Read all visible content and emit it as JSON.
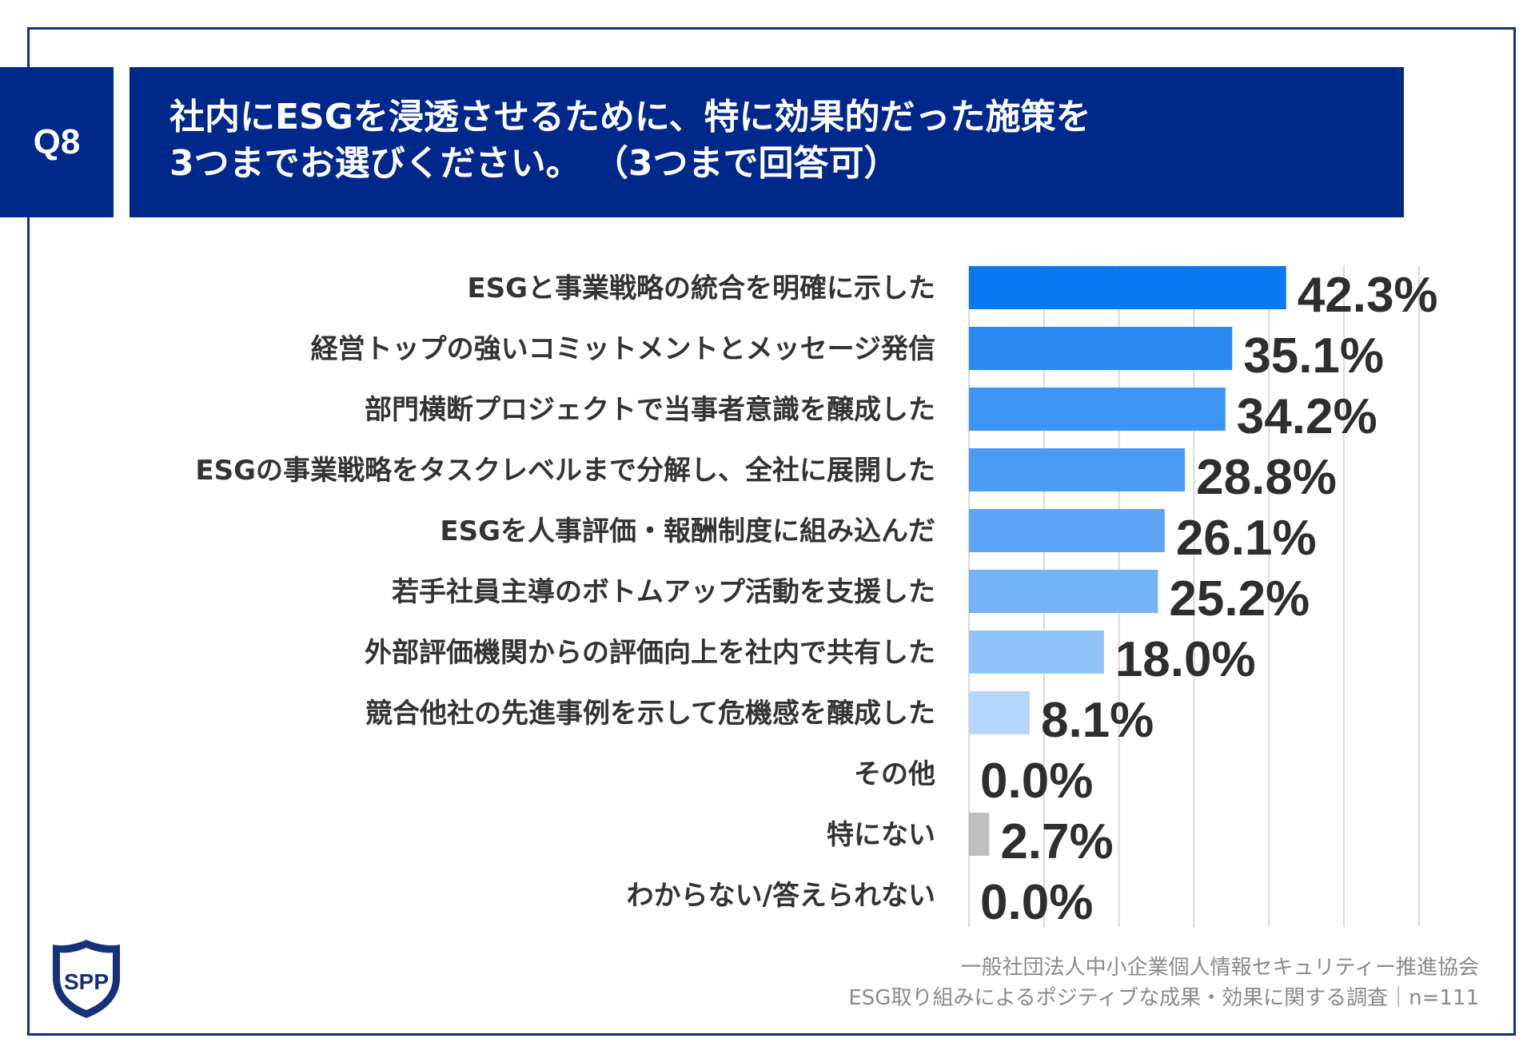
{
  "question_label": "Q8",
  "title": {
    "line1": "社内にESGを浸透させるために、特に効果的だった施策を",
    "line2": "3つまでお選びください。 （3つまで回答可）"
  },
  "chart_data": {
    "type": "bar",
    "orientation": "horizontal",
    "categories": [
      "ESGと事業戦略の統合を明確に示した",
      "経営トップの強いコミットメントとメッセージ発信",
      "部門横断プロジェクトで当事者意識を醸成した",
      "ESGの事業戦略をタスクレベルまで分解し、全社に展開した",
      "ESGを人事評価・報酬制度に組み込んだ",
      "若手社員主導のボトムアップ活動を支援した",
      "外部評価機関からの評価向上を社内で共有した",
      "競合他社の先進事例を示して危機感を醸成した",
      "その他",
      "特にない",
      "わからない/答えられない"
    ],
    "values": [
      42.3,
      35.1,
      34.2,
      28.8,
      26.1,
      25.2,
      18.0,
      8.1,
      0.0,
      2.7,
      0.0
    ],
    "value_labels": [
      "42.3%",
      "35.1%",
      "34.2%",
      "28.8%",
      "26.1%",
      "25.2%",
      "18.0%",
      "8.1%",
      "0.0%",
      "2.7%",
      "0.0%"
    ],
    "bar_colors": [
      "#0a78f0",
      "#2a8af2",
      "#3d94f3",
      "#4d9cf4",
      "#5ea6f5",
      "#75b3f7",
      "#93c4f9",
      "#b5d7fb",
      "#c8e1fc",
      "#bfbfbf",
      "#d9d9d9"
    ],
    "xlim": [
      0,
      60
    ],
    "grid": true,
    "title": "",
    "xlabel": "",
    "ylabel": ""
  },
  "logo": {
    "icon": "spp-shield-logo",
    "text": "SPP"
  },
  "source": {
    "line1": "一般社団法人中小企業個人情報セキュリティー推進協会",
    "line2": "ESG取り組みによるポジティブな成果・効果に関する調査｜n=111"
  },
  "colors": {
    "brand_navy": "#00288a",
    "frame": "#16307a"
  }
}
